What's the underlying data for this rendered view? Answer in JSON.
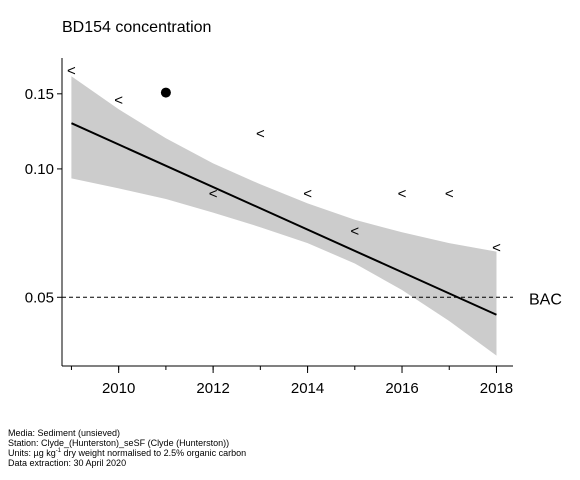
{
  "chart_data": {
    "type": "line",
    "title": "BD154 concentration",
    "xlabel": "",
    "ylabel": "",
    "log_y": true,
    "xlim": [
      2008.8,
      2018.35
    ],
    "ylim": [
      0.0345,
      0.182
    ],
    "x_ticks": [
      2010,
      2012,
      2014,
      2016,
      2018
    ],
    "x_tick_labels": [
      "2010",
      "2012",
      "2014",
      "2016",
      "2018"
    ],
    "y_ticks": [
      0.05,
      0.1,
      0.15
    ],
    "y_tick_labels": [
      "0.05",
      "0.10",
      "0.15"
    ],
    "grid": false,
    "trend": {
      "x": [
        2009,
        2018
      ],
      "y": [
        0.128,
        0.0455
      ],
      "band_upper": [
        0.165,
        0.064
      ],
      "band_lower": [
        0.095,
        0.0365
      ],
      "band_x": [
        2009,
        2010,
        2011,
        2012,
        2013,
        2014,
        2015,
        2016,
        2017,
        2018
      ],
      "band_upper_values": [
        0.165,
        0.138,
        0.118,
        0.103,
        0.092,
        0.083,
        0.076,
        0.071,
        0.067,
        0.064
      ],
      "band_lower_values": [
        0.095,
        0.09,
        0.085,
        0.079,
        0.073,
        0.067,
        0.06,
        0.052,
        0.044,
        0.0365
      ]
    },
    "less_than_points": [
      {
        "x": 2009,
        "y": 0.17
      },
      {
        "x": 2010,
        "y": 0.145
      },
      {
        "x": 2012,
        "y": 0.0875
      },
      {
        "x": 2013,
        "y": 0.121
      },
      {
        "x": 2014,
        "y": 0.0875
      },
      {
        "x": 2015,
        "y": 0.0715
      },
      {
        "x": 2016,
        "y": 0.0875
      },
      {
        "x": 2017,
        "y": 0.0875
      },
      {
        "x": 2018,
        "y": 0.0655
      }
    ],
    "less_than_symbol": "<",
    "detected_points": [
      {
        "x": 2011,
        "y": 0.151
      }
    ],
    "reference_line": {
      "y": 0.05,
      "label": "BAC",
      "style": "dashed"
    },
    "colors": {
      "band": "#cccccc",
      "trend": "#000000",
      "points": "#000000"
    }
  },
  "footer": {
    "media": "Media: Sediment (unsieved)",
    "station": "Station: Clyde_(Hunterston)_seSF (Clyde (Hunterston))",
    "units_prefix": "Units:  µg kg",
    "units_sup": "-1",
    "units_suffix": " dry weight normalised to 2.5% organic carbon",
    "extraction": "Data extraction: 30 April 2020"
  }
}
